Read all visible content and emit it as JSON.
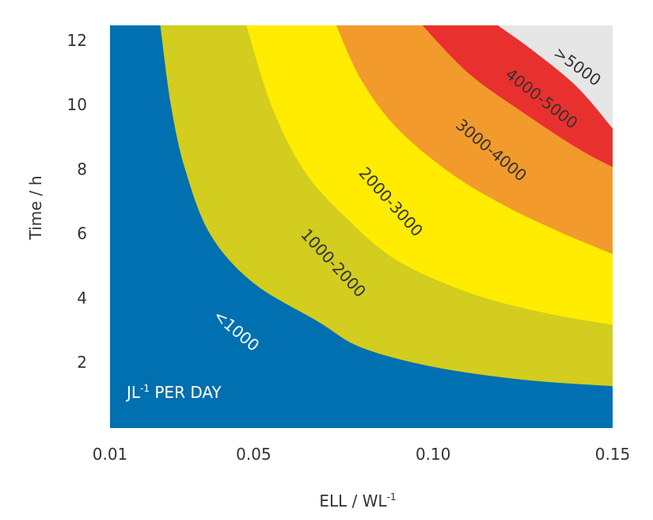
{
  "chart_data": {
    "type": "heatmap",
    "title": "",
    "xlabel": "ELL / WL",
    "xlabel_superscript": "-1",
    "ylabel": "Time / h",
    "xlim": [
      0.01,
      0.15
    ],
    "ylim": [
      0.0,
      12.5
    ],
    "x_ticks": [
      {
        "value": 0.01,
        "label": "0.01"
      },
      {
        "value": 0.05,
        "label": "0.05"
      },
      {
        "value": 0.1,
        "label": "0.10"
      },
      {
        "value": 0.15,
        "label": "0.15"
      }
    ],
    "y_ticks": [
      {
        "value": 2,
        "label": "2"
      },
      {
        "value": 4,
        "label": "4"
      },
      {
        "value": 6,
        "label": "6"
      },
      {
        "value": 8,
        "label": "8"
      },
      {
        "value": 10,
        "label": "10"
      },
      {
        "value": 12,
        "label": "12"
      }
    ],
    "unit_label": {
      "prefix": "JL",
      "superscript": "-1",
      "suffix": " PER DAY"
    },
    "legend": "none (labels drawn on bands)",
    "grid": false,
    "bands": [
      {
        "label": "<1000",
        "color": "#0070b0",
        "label_color": "#ffffff",
        "label_at": [
          0.045,
          3.0
        ],
        "label_angle": 40
      },
      {
        "label": "1000-2000",
        "color": "#d2cd1e",
        "label_color": "#333333",
        "label_at": [
          0.072,
          5.1
        ],
        "label_angle": 47
      },
      {
        "label": "2000-3000",
        "color": "#ffec00",
        "label_color": "#333333",
        "label_at": [
          0.088,
          7.0
        ],
        "label_angle": 48
      },
      {
        "label": "3000-4000",
        "color": "#f39a2c",
        "label_color": "#333333",
        "label_at": [
          0.116,
          8.6
        ],
        "label_angle": 40
      },
      {
        "label": "4000-5000",
        "color": "#e8312f",
        "label_color": "#333333",
        "label_at": [
          0.13,
          10.2
        ],
        "label_angle": 38
      },
      {
        "label": ">5000",
        "color": "#e6e6e6",
        "label_color": "#333333",
        "label_at": [
          0.14,
          11.2
        ],
        "label_angle": 36
      }
    ],
    "boundaries": [
      {
        "between": "<1000 / 1000-2000",
        "points": [
          [
            0.024,
            12.5
          ],
          [
            0.027,
            10.0
          ],
          [
            0.031,
            8.0
          ],
          [
            0.038,
            6.0
          ],
          [
            0.05,
            4.5
          ],
          [
            0.068,
            3.3
          ],
          [
            0.08,
            2.5
          ],
          [
            0.1,
            1.9
          ],
          [
            0.125,
            1.5
          ],
          [
            0.15,
            1.3
          ]
        ]
      },
      {
        "between": "1000-2000 / 2000-3000",
        "points": [
          [
            0.048,
            12.5
          ],
          [
            0.055,
            10.0
          ],
          [
            0.064,
            8.0
          ],
          [
            0.076,
            6.5
          ],
          [
            0.09,
            5.2
          ],
          [
            0.11,
            4.2
          ],
          [
            0.13,
            3.6
          ],
          [
            0.15,
            3.2
          ]
        ]
      },
      {
        "between": "2000-3000 / 3000-4000",
        "points": [
          [
            0.073,
            12.5
          ],
          [
            0.08,
            10.8
          ],
          [
            0.09,
            9.3
          ],
          [
            0.105,
            7.9
          ],
          [
            0.12,
            6.9
          ],
          [
            0.135,
            6.1
          ],
          [
            0.15,
            5.4
          ]
        ]
      },
      {
        "between": "3000-4000 / 4000-5000",
        "points": [
          [
            0.097,
            12.5
          ],
          [
            0.11,
            11.0
          ],
          [
            0.125,
            9.8
          ],
          [
            0.14,
            8.7
          ],
          [
            0.15,
            8.1
          ]
        ]
      },
      {
        "between": "4000-5000 / >5000",
        "points": [
          [
            0.118,
            12.5
          ],
          [
            0.128,
            11.7
          ],
          [
            0.14,
            10.6
          ],
          [
            0.15,
            9.3
          ]
        ]
      }
    ]
  }
}
